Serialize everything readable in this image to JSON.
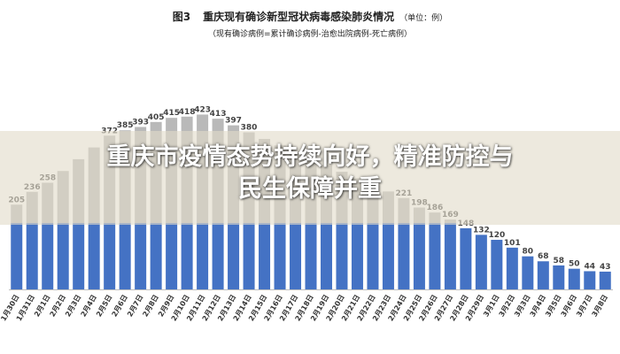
{
  "figure": {
    "number": "图3",
    "title": "重庆现有确诊新型冠状病毒感染肺炎情况",
    "unit": "（单位：例）",
    "note": "（现有确诊病例=累计确诊病例-治愈出院病例-死亡病例）"
  },
  "headline": {
    "line1": "重庆市疫情态势持续向好，精准防控与",
    "line2": "民生保障并重"
  },
  "colors": {
    "bar_bottom": "#4472c4",
    "bar_top": "#b9b9b9",
    "axis": "#bfbfbf"
  },
  "chart_data": {
    "type": "bar",
    "categories": [
      "1月30日",
      "1月31日",
      "2月1日",
      "2月2日",
      "2月3日",
      "2月4日",
      "2月5日",
      "2月6日",
      "2月7日",
      "2月8日",
      "2月9日",
      "2月10日",
      "2月11日",
      "2月12日",
      "2月13日",
      "2月14日",
      "2月15日",
      "2月16日",
      "2月17日",
      "2月18日",
      "2月19日",
      "2月20日",
      "2月21日",
      "2月22日",
      "2月23日",
      "2月24日",
      "2月25日",
      "2月26日",
      "2月27日",
      "2月28日",
      "2月29日",
      "3月1日",
      "3月2日",
      "3月3日",
      "3月4日",
      "3月5日",
      "3月6日",
      "3月7日",
      "3月8日"
    ],
    "values": [
      205,
      236,
      258,
      null,
      null,
      null,
      372,
      385,
      393,
      405,
      415,
      418,
      423,
      413,
      397,
      380,
      null,
      null,
      null,
      null,
      null,
      null,
      null,
      null,
      null,
      221,
      198,
      186,
      169,
      148,
      132,
      120,
      101,
      80,
      68,
      58,
      50,
      44,
      43
    ],
    "ylim": [
      0,
      450
    ],
    "grid": false,
    "legend": "none"
  }
}
